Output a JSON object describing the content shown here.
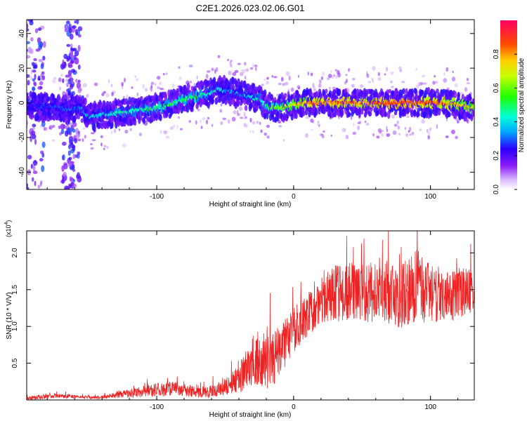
{
  "title": "C2E1.2026.023.02.06.G01",
  "colors": {
    "snr_line": "#ee2222",
    "axis": "#000000"
  },
  "chart_data": [
    {
      "type": "heatmap",
      "name": "spectrogram",
      "xlabel": "Height of straight line (km)",
      "ylabel": "Frequency (Hz)",
      "xlim": [
        -195,
        132
      ],
      "ylim": [
        -50,
        48
      ],
      "x_ticks": [
        -100,
        0,
        100
      ],
      "y_ticks": [
        -40,
        -20,
        0,
        20,
        40
      ],
      "x_tick_labels": [
        "-100",
        "0",
        "100"
      ],
      "y_tick_labels": [
        "-40",
        "-20",
        "0",
        "20",
        "40"
      ],
      "ridge": {
        "x": [
          -195,
          -185,
          -175,
          -165,
          -155,
          -150,
          -140,
          -130,
          -120,
          -110,
          -100,
          -90,
          -80,
          -70,
          -60,
          -55,
          -50,
          -45,
          -40,
          -35,
          -30,
          -25,
          -20,
          -15,
          -10,
          -5,
          0,
          10,
          20,
          30,
          40,
          50,
          60,
          70,
          80,
          90,
          100,
          110,
          120,
          130
        ],
        "freq_hz": [
          -1,
          -2,
          -2,
          -4,
          -3,
          -8,
          -7,
          -6,
          -5,
          -4,
          -3,
          -1,
          2,
          4,
          6,
          8,
          7,
          6,
          5,
          4,
          3,
          2,
          -2,
          -3,
          -3,
          -2,
          -1,
          0,
          0,
          0,
          0,
          0,
          0,
          0,
          0,
          0,
          0,
          0,
          -1,
          -3
        ],
        "amplitude": [
          0.2,
          0.25,
          0.25,
          0.3,
          0.3,
          0.35,
          0.4,
          0.45,
          0.45,
          0.45,
          0.5,
          0.5,
          0.5,
          0.5,
          0.45,
          0.4,
          0.35,
          0.35,
          0.35,
          0.35,
          0.4,
          0.45,
          0.5,
          0.55,
          0.6,
          0.65,
          0.7,
          0.8,
          0.85,
          0.85,
          0.85,
          0.8,
          0.85,
          0.9,
          0.9,
          0.85,
          0.85,
          0.8,
          0.75,
          0.7
        ]
      },
      "colorbar": {
        "label": "Normalized spectral amplitude",
        "range": [
          0.0,
          1.0
        ],
        "ticks": [
          0.0,
          0.2,
          0.4,
          0.6,
          0.8
        ],
        "tick_labels": [
          "0.0",
          "0.2",
          "0.4",
          "0.6",
          "0.8"
        ]
      }
    },
    {
      "type": "line",
      "name": "snr",
      "xlabel": "Height of straight line (km)",
      "ylabel": "SNR (10 * V/V)",
      "scale_label": "(x10",
      "scale_exponent": "4",
      "scale_suffix": ")",
      "xlim": [
        -195,
        132
      ],
      "ylim": [
        0,
        2.3
      ],
      "x_ticks": [
        -100,
        0,
        100
      ],
      "y_ticks": [
        0.5,
        1.0,
        1.5,
        2.0
      ],
      "x_tick_labels": [
        "-100",
        "0",
        "100"
      ],
      "y_tick_labels": [
        "0.5",
        "1.0",
        "1.5",
        "2.0"
      ],
      "series": [
        {
          "name": "SNR",
          "x": [
            -195,
            -185,
            -175,
            -165,
            -155,
            -145,
            -135,
            -125,
            -115,
            -105,
            -100,
            -95,
            -90,
            -85,
            -80,
            -75,
            -70,
            -65,
            -60,
            -55,
            -50,
            -45,
            -40,
            -35,
            -30,
            -25,
            -20,
            -15,
            -10,
            -5,
            0,
            5,
            10,
            15,
            20,
            25,
            30,
            35,
            40,
            45,
            50,
            55,
            60,
            65,
            70,
            75,
            80,
            85,
            90,
            95,
            100,
            105,
            110,
            115,
            120,
            125,
            130
          ],
          "base": [
            0.02,
            0.04,
            0.06,
            0.05,
            0.04,
            0.03,
            0.05,
            0.08,
            0.1,
            0.12,
            0.14,
            0.15,
            0.16,
            0.15,
            0.14,
            0.12,
            0.1,
            0.11,
            0.12,
            0.14,
            0.18,
            0.22,
            0.3,
            0.4,
            0.55,
            0.6,
            0.6,
            0.55,
            0.7,
            0.8,
            0.95,
            1.05,
            1.15,
            1.25,
            1.35,
            1.42,
            1.45,
            1.45,
            1.45,
            1.45,
            1.45,
            1.45,
            1.48,
            1.5,
            1.45,
            1.4,
            1.4,
            1.45,
            1.55,
            1.5,
            1.45,
            1.45,
            1.4,
            1.42,
            1.45,
            1.45,
            1.45
          ],
          "noise": [
            0.03,
            0.03,
            0.03,
            0.03,
            0.02,
            0.02,
            0.03,
            0.05,
            0.07,
            0.08,
            0.09,
            0.1,
            0.1,
            0.09,
            0.09,
            0.08,
            0.07,
            0.08,
            0.09,
            0.1,
            0.12,
            0.15,
            0.2,
            0.28,
            0.35,
            0.4,
            0.45,
            0.4,
            0.35,
            0.32,
            0.3,
            0.3,
            0.3,
            0.3,
            0.32,
            0.35,
            0.38,
            0.4,
            0.42,
            0.42,
            0.4,
            0.42,
            0.45,
            0.45,
            0.42,
            0.42,
            0.45,
            0.48,
            0.5,
            0.45,
            0.4,
            0.4,
            0.35,
            0.35,
            0.35,
            0.35,
            0.35
          ]
        }
      ]
    }
  ]
}
